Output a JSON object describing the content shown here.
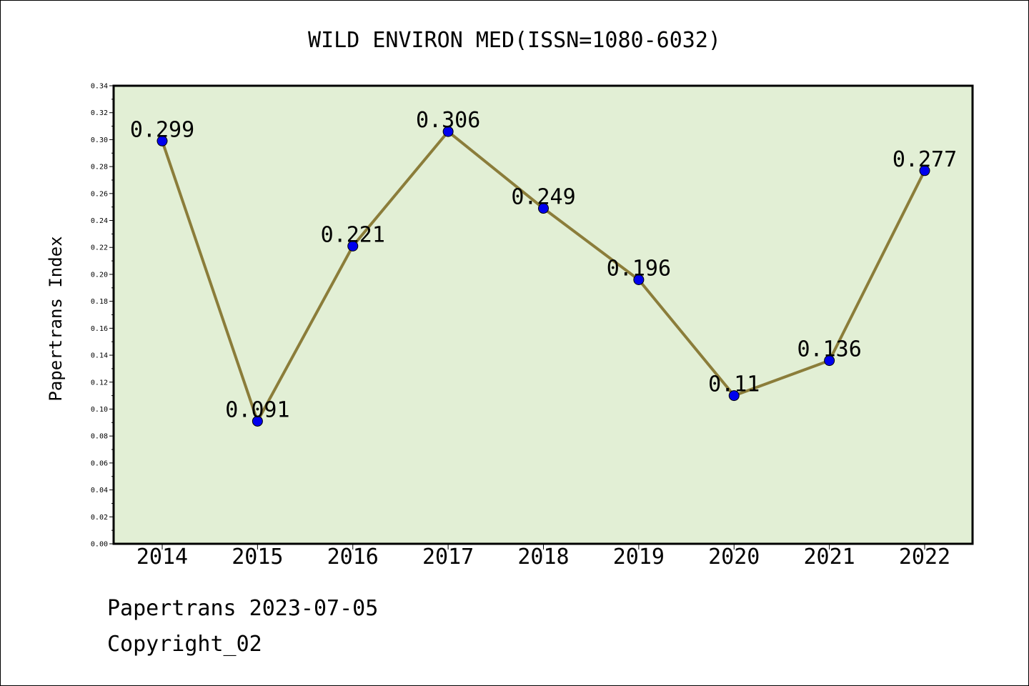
{
  "chart_data": {
    "type": "line",
    "title": "WILD ENVIRON MED(ISSN=1080-6032)",
    "xlabel": "",
    "ylabel": "Papertrans Index",
    "categories": [
      "2014",
      "2015",
      "2016",
      "2017",
      "2018",
      "2019",
      "2020",
      "2021",
      "2022"
    ],
    "values": [
      0.299,
      0.091,
      0.221,
      0.306,
      0.249,
      0.196,
      0.11,
      0.136,
      0.277
    ],
    "data_labels": [
      "0.299",
      "0.091",
      "0.221",
      "0.306",
      "0.249",
      "0.196",
      "0.11",
      "0.136",
      "0.277"
    ],
    "ylim": [
      0,
      0.34
    ],
    "yticks": [
      "0.00",
      "0.02",
      "0.04",
      "0.06",
      "0.08",
      "0.10",
      "0.12",
      "0.14",
      "0.16",
      "0.18",
      "0.20",
      "0.22",
      "0.24",
      "0.26",
      "0.28",
      "0.30",
      "0.32",
      "0.34"
    ],
    "grid": false,
    "colors": {
      "plot_background": "#e2efd5",
      "line": "#8b7d3a",
      "marker": "#0000ee"
    }
  },
  "footer": {
    "line1": "Papertrans 2023-07-05",
    "line2": "Copyright_02"
  }
}
